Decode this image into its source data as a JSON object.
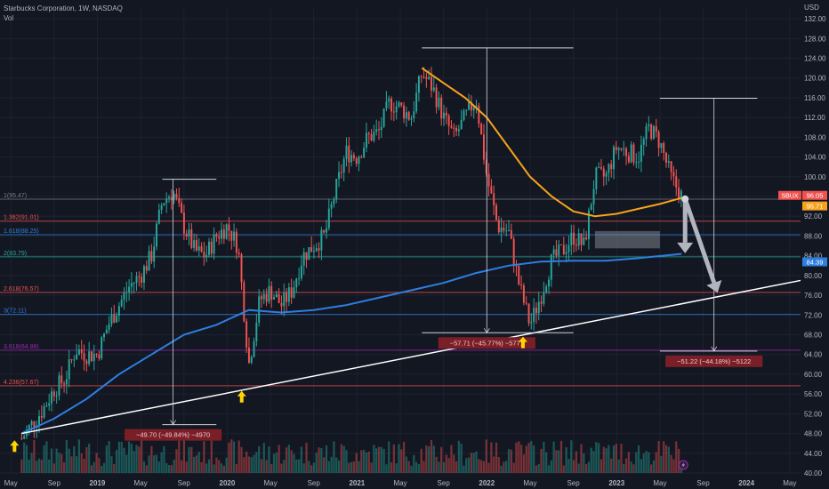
{
  "header": {
    "title": "Starbucks Corporation, 1W, NASDAQ",
    "indicator": "Vol"
  },
  "colors": {
    "background": "#131722",
    "grid": "#1e2230",
    "up": "#26a69a",
    "down": "#ef5350",
    "ma_fast": "#f7a21b",
    "ma_slow": "#2d7fe0",
    "trendline": "#ffffff",
    "arrow": "#b2b5be"
  },
  "icons": [
    "up-arrow-icon",
    "lightning-icon"
  ],
  "chart_data": {
    "type": "candlestick",
    "title": "Starbucks Corporation, 1W, NASDAQ",
    "currency_label": "USD",
    "ylim": [
      40,
      134
    ],
    "y_ticks": [
      40,
      44,
      48,
      52,
      56,
      60,
      64,
      68,
      72,
      76,
      80,
      84,
      88,
      92,
      96,
      100,
      104,
      108,
      112,
      116,
      120,
      124,
      128,
      132
    ],
    "x_labels": [
      "May",
      "Sep",
      "2019",
      "May",
      "Sep",
      "2020",
      "May",
      "Sep",
      "2021",
      "May",
      "Sep",
      "2022",
      "May",
      "Sep",
      "2023",
      "May",
      "Sep",
      "2024",
      "May"
    ],
    "x_label_dates": [
      "2018-05",
      "2018-09",
      "2019-01",
      "2019-05",
      "2019-09",
      "2020-01",
      "2020-05",
      "2020-09",
      "2021-01",
      "2021-05",
      "2021-09",
      "2022-01",
      "2022-05",
      "2022-09",
      "2023-01",
      "2023-05",
      "2023-09",
      "2024-01",
      "2024-05"
    ],
    "x_domain": [
      "2018-04",
      "2024-06"
    ],
    "price_path": [
      [
        "2018-06",
        47
      ],
      [
        "2018-07",
        50
      ],
      [
        "2018-08",
        53
      ],
      [
        "2018-09",
        57
      ],
      [
        "2018-10",
        59
      ],
      [
        "2018-11",
        65
      ],
      [
        "2018-12",
        64
      ],
      [
        "2019-01",
        64
      ],
      [
        "2019-02",
        70
      ],
      [
        "2019-03",
        74
      ],
      [
        "2019-04",
        78
      ],
      [
        "2019-05",
        80
      ],
      [
        "2019-06",
        84
      ],
      [
        "2019-07",
        95
      ],
      [
        "2019-08",
        97
      ],
      [
        "2019-09",
        90
      ],
      [
        "2019-10",
        85
      ],
      [
        "2019-11",
        84
      ],
      [
        "2019-12",
        88
      ],
      [
        "2020-01",
        90
      ],
      [
        "2020-02",
        86
      ],
      [
        "2020-03",
        62
      ],
      [
        "2020-04",
        75
      ],
      [
        "2020-05",
        77
      ],
      [
        "2020-06",
        74
      ],
      [
        "2020-07",
        77
      ],
      [
        "2020-08",
        84
      ],
      [
        "2020-09",
        86
      ],
      [
        "2020-10",
        88
      ],
      [
        "2020-11",
        97
      ],
      [
        "2020-12",
        105
      ],
      [
        "2021-01",
        104
      ],
      [
        "2021-02",
        108
      ],
      [
        "2021-03",
        109
      ],
      [
        "2021-04",
        115
      ],
      [
        "2021-05",
        114
      ],
      [
        "2021-06",
        112
      ],
      [
        "2021-07",
        121
      ],
      [
        "2021-08",
        118
      ],
      [
        "2021-09",
        112
      ],
      [
        "2021-10",
        108
      ],
      [
        "2021-11",
        112
      ],
      [
        "2021-12",
        116
      ],
      [
        "2022-01",
        100
      ],
      [
        "2022-02",
        90
      ],
      [
        "2022-03",
        89
      ],
      [
        "2022-04",
        78
      ],
      [
        "2022-05",
        70
      ],
      [
        "2022-06",
        76
      ],
      [
        "2022-07",
        83
      ],
      [
        "2022-08",
        85
      ],
      [
        "2022-09",
        88
      ],
      [
        "2022-10",
        86
      ],
      [
        "2022-11",
        100
      ],
      [
        "2022-12",
        100
      ],
      [
        "2023-01",
        106
      ],
      [
        "2023-02",
        105
      ],
      [
        "2023-03",
        104
      ],
      [
        "2023-04",
        110
      ],
      [
        "2023-05",
        107
      ],
      [
        "2023-06",
        100
      ],
      [
        "2023-07",
        96.05
      ]
    ],
    "moving_averages": [
      {
        "color": "ma_fast",
        "points": [
          [
            "2021-07",
            122
          ],
          [
            "2021-09",
            119
          ],
          [
            "2021-11",
            116
          ],
          [
            "2022-01",
            112
          ],
          [
            "2022-03",
            106
          ],
          [
            "2022-05",
            100
          ],
          [
            "2022-07",
            96
          ],
          [
            "2022-09",
            93
          ],
          [
            "2022-11",
            92
          ],
          [
            "2023-01",
            92.5
          ],
          [
            "2023-03",
            93.5
          ],
          [
            "2023-05",
            94.5
          ],
          [
            "2023-07",
            95.71
          ]
        ]
      },
      {
        "color": "ma_slow",
        "points": [
          [
            "2018-06",
            48
          ],
          [
            "2018-09",
            51
          ],
          [
            "2018-12",
            55
          ],
          [
            "2019-03",
            60
          ],
          [
            "2019-06",
            64
          ],
          [
            "2019-09",
            68
          ],
          [
            "2019-12",
            70
          ],
          [
            "2020-03",
            73
          ],
          [
            "2020-06",
            72.5
          ],
          [
            "2020-09",
            73
          ],
          [
            "2020-12",
            74
          ],
          [
            "2021-03",
            75.5
          ],
          [
            "2021-06",
            77
          ],
          [
            "2021-09",
            78.5
          ],
          [
            "2021-12",
            80.5
          ],
          [
            "2022-03",
            82
          ],
          [
            "2022-06",
            82.8
          ],
          [
            "2022-09",
            83
          ],
          [
            "2022-12",
            83
          ],
          [
            "2023-03",
            83.5
          ],
          [
            "2023-07",
            84.39
          ]
        ]
      }
    ],
    "price_tags": [
      {
        "label": "SBUX",
        "value": "96.05",
        "y": 96.05,
        "color": "#ef5350"
      },
      {
        "label": "",
        "value": "95.71",
        "y": 95.71,
        "color": "#f7a21b"
      },
      {
        "label": "",
        "value": "84.39",
        "y": 84.39,
        "color": "#2d7fe0"
      }
    ],
    "fib_levels": [
      {
        "label": "1(95.47)",
        "y": 95.47,
        "color": "#787b86"
      },
      {
        "label": "1.382(91.01)",
        "y": 91.01,
        "color": "#ef5350"
      },
      {
        "label": "1.618(88.25)",
        "y": 88.25,
        "color": "#2d7fe0"
      },
      {
        "label": "2(83.79)",
        "y": 83.79,
        "color": "#26a69a"
      },
      {
        "label": "2.618(76.57)",
        "y": 76.57,
        "color": "#ef5350"
      },
      {
        "label": "3(72.11)",
        "y": 72.11,
        "color": "#2d7fe0"
      },
      {
        "label": "3.618(64.88)",
        "y": 64.88,
        "color": "#9c27b0"
      },
      {
        "label": "4.236(57.67)",
        "y": 57.67,
        "color": "#ef5350"
      }
    ],
    "trendline": {
      "from": [
        "2018-06",
        48
      ],
      "to": [
        "2024-06",
        79
      ]
    },
    "measurements": [
      {
        "label": "−49.70 (−49.84%) −4970",
        "from": [
          "2019-08",
          99.5
        ],
        "to": [
          "2019-08",
          49.8
        ],
        "left": "2019-07",
        "right": "2019-12"
      },
      {
        "label": "−57.71 (−45.77%) −5771",
        "from": [
          "2022-01",
          126.1
        ],
        "to": [
          "2022-01",
          68.4
        ],
        "left": "2021-07",
        "right": "2022-09"
      },
      {
        "label": "−51.22 (−44.18%) −5122",
        "from": [
          "2023-10",
          115.9
        ],
        "to": [
          "2023-10",
          64.7
        ],
        "left": "2023-05",
        "right": "2024-02"
      }
    ],
    "projection_box": {
      "from": [
        "2022-11",
        89
      ],
      "to": [
        "2023-05",
        85.5
      ]
    },
    "projection_arrows": [
      {
        "from": [
          "2023-07",
          95.5
        ],
        "to": [
          "2023-07",
          84.5
        ]
      },
      {
        "from": [
          "2023-07",
          95.5
        ],
        "to": [
          "2023-10",
          76.5
        ]
      }
    ],
    "markers": [
      {
        "date": "2018-06",
        "y": 45
      },
      {
        "date": "2020-03",
        "y": 55
      },
      {
        "date": "2022-05",
        "y": 66
      }
    ],
    "lightning_marker": {
      "date": "2023-07"
    }
  }
}
